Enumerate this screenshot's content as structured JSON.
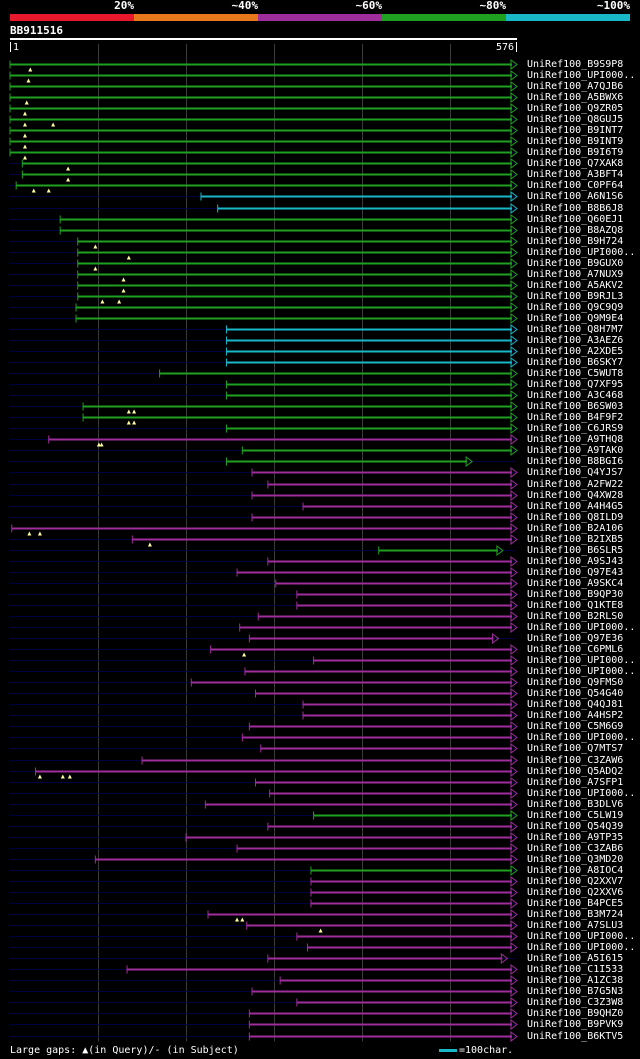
{
  "legend": {
    "segments": [
      {
        "label": "20%",
        "color": "#e8192c"
      },
      {
        "label": "~40%",
        "color": "#e8781c"
      },
      {
        "label": "~60%",
        "color": "#a02d9c"
      },
      {
        "label": "~80%",
        "color": "#20a020"
      },
      {
        "label": "~100%",
        "color": "#18b8c8"
      }
    ]
  },
  "query": {
    "name": "BB911516",
    "start": "1",
    "end": "576",
    "length": 576
  },
  "colors": {
    "purple": "#a02d9c",
    "green": "#20a020",
    "cyan": "#18b8c8",
    "gap": "#000040",
    "grid": "#3a3a3a"
  },
  "hits": [
    {
      "name": "UniRef100_B9S9P8",
      "c": "green",
      "s": 1,
      "e": 576,
      "gaps": [
        24
      ]
    },
    {
      "name": "UniRef100_UPI000..",
      "c": "green",
      "s": 1,
      "e": 576,
      "gaps": [
        22
      ]
    },
    {
      "name": "UniRef100_A7QJB6",
      "c": "green",
      "s": 1,
      "e": 576,
      "gaps": []
    },
    {
      "name": "UniRef100_A5BWX6",
      "c": "green",
      "s": 1,
      "e": 576,
      "gaps": [
        20
      ]
    },
    {
      "name": "UniRef100_Q9ZR05",
      "c": "green",
      "s": 1,
      "e": 576,
      "gaps": [
        18
      ]
    },
    {
      "name": "UniRef100_Q8GUJ5",
      "c": "green",
      "s": 1,
      "e": 576,
      "gaps": [
        18,
        50
      ]
    },
    {
      "name": "UniRef100_B9INT7",
      "c": "green",
      "s": 1,
      "e": 576,
      "gaps": [
        18
      ]
    },
    {
      "name": "UniRef100_B9INT9",
      "c": "green",
      "s": 1,
      "e": 576,
      "gaps": [
        18
      ]
    },
    {
      "name": "UniRef100_B9I6T9",
      "c": "green",
      "s": 1,
      "e": 576,
      "gaps": [
        18
      ]
    },
    {
      "name": "UniRef100_Q7XAK8",
      "c": "green",
      "s": 15,
      "e": 576,
      "gaps": [
        67
      ]
    },
    {
      "name": "UniRef100_A3BFT4",
      "c": "green",
      "s": 15,
      "e": 576,
      "gaps": [
        67
      ]
    },
    {
      "name": "UniRef100_C0PF64",
      "c": "green",
      "s": 8,
      "e": 576,
      "gaps": [
        28,
        45
      ]
    },
    {
      "name": "UniRef100_A6N1S6",
      "c": "cyan",
      "s": 218,
      "e": 576,
      "gaps": []
    },
    {
      "name": "UniRef100_B8B6J8",
      "c": "cyan",
      "s": 237,
      "e": 576,
      "gaps": []
    },
    {
      "name": "UniRef100_Q60EJ1",
      "c": "green",
      "s": 58,
      "e": 576,
      "gaps": []
    },
    {
      "name": "UniRef100_B8AZQ8",
      "c": "green",
      "s": 58,
      "e": 576,
      "gaps": []
    },
    {
      "name": "UniRef100_B9H724",
      "c": "green",
      "s": 78,
      "e": 576,
      "gaps": [
        98
      ]
    },
    {
      "name": "UniRef100_UPI000..",
      "c": "green",
      "s": 78,
      "e": 576,
      "gaps": [
        136
      ]
    },
    {
      "name": "UniRef100_B9GUX0",
      "c": "green",
      "s": 78,
      "e": 576,
      "gaps": [
        98
      ]
    },
    {
      "name": "UniRef100_A7NUX9",
      "c": "green",
      "s": 78,
      "e": 576,
      "gaps": [
        130
      ]
    },
    {
      "name": "UniRef100_A5AKV2",
      "c": "green",
      "s": 78,
      "e": 576,
      "gaps": [
        130
      ]
    },
    {
      "name": "UniRef100_B9RJL3",
      "c": "green",
      "s": 78,
      "e": 576,
      "gaps": [
        106,
        125
      ]
    },
    {
      "name": "UniRef100_Q9C9Q9",
      "c": "green",
      "s": 76,
      "e": 576,
      "gaps": []
    },
    {
      "name": "UniRef100_Q9M9E4",
      "c": "green",
      "s": 76,
      "e": 576,
      "gaps": []
    },
    {
      "name": "UniRef100_Q8H7M7",
      "c": "cyan",
      "s": 247,
      "e": 576,
      "gaps": []
    },
    {
      "name": "UniRef100_A3AEZ6",
      "c": "cyan",
      "s": 247,
      "e": 576,
      "gaps": []
    },
    {
      "name": "UniRef100_A2XDE5",
      "c": "cyan",
      "s": 247,
      "e": 576,
      "gaps": []
    },
    {
      "name": "UniRef100_B6SKY7",
      "c": "cyan",
      "s": 247,
      "e": 576,
      "gaps": []
    },
    {
      "name": "UniRef100_C5WUT8",
      "c": "green",
      "s": 171,
      "e": 576,
      "gaps": []
    },
    {
      "name": "UniRef100_Q7XF95",
      "c": "green",
      "s": 247,
      "e": 576,
      "gaps": []
    },
    {
      "name": "UniRef100_A3C468",
      "c": "green",
      "s": 247,
      "e": 576,
      "gaps": []
    },
    {
      "name": "UniRef100_B6SW03",
      "c": "green",
      "s": 84,
      "e": 576,
      "gaps": [
        136,
        142
      ]
    },
    {
      "name": "UniRef100_B4F9F2",
      "c": "green",
      "s": 84,
      "e": 576,
      "gaps": [
        136,
        142
      ]
    },
    {
      "name": "UniRef100_C6JRS9",
      "c": "green",
      "s": 247,
      "e": 576,
      "gaps": []
    },
    {
      "name": "UniRef100_A9THQ8",
      "c": "purple",
      "s": 45,
      "e": 576,
      "gaps": [
        102,
        105
      ]
    },
    {
      "name": "UniRef100_A9TAK0",
      "c": "green",
      "s": 265,
      "e": 576,
      "gaps": []
    },
    {
      "name": "UniRef100_B8BGI6",
      "c": "green",
      "s": 247,
      "e": 525,
      "gaps": []
    },
    {
      "name": "UniRef100_Q4YJS7",
      "c": "purple",
      "s": 276,
      "e": 576,
      "gaps": []
    },
    {
      "name": "UniRef100_A2FW22",
      "c": "purple",
      "s": 294,
      "e": 576,
      "gaps": []
    },
    {
      "name": "UniRef100_Q4XW28",
      "c": "purple",
      "s": 276,
      "e": 576,
      "gaps": []
    },
    {
      "name": "UniRef100_A4H4G5",
      "c": "purple",
      "s": 334,
      "e": 576,
      "gaps": []
    },
    {
      "name": "UniRef100_Q8ILD9",
      "c": "purple",
      "s": 276,
      "e": 576,
      "gaps": []
    },
    {
      "name": "UniRef100_B2A106",
      "c": "purple",
      "s": 3,
      "e": 576,
      "gaps": [
        23,
        35
      ]
    },
    {
      "name": "UniRef100_B2IXB5",
      "c": "purple",
      "s": 140,
      "e": 576,
      "gaps": [
        160
      ]
    },
    {
      "name": "UniRef100_B6SLR5",
      "c": "green",
      "s": 420,
      "e": 560,
      "gaps": []
    },
    {
      "name": "UniRef100_A9SJ43",
      "c": "purple",
      "s": 294,
      "e": 576,
      "gaps": []
    },
    {
      "name": "UniRef100_Q97E43",
      "c": "purple",
      "s": 259,
      "e": 576,
      "gaps": []
    },
    {
      "name": "UniRef100_A9SKC4",
      "c": "purple",
      "s": 303,
      "e": 576,
      "gaps": []
    },
    {
      "name": "UniRef100_B9QP30",
      "c": "purple",
      "s": 327,
      "e": 576,
      "gaps": []
    },
    {
      "name": "UniRef100_Q1KTE8",
      "c": "purple",
      "s": 327,
      "e": 576,
      "gaps": []
    },
    {
      "name": "UniRef100_B2RLS0",
      "c": "purple",
      "s": 283,
      "e": 576,
      "gaps": []
    },
    {
      "name": "UniRef100_UPI000..",
      "c": "purple",
      "s": 262,
      "e": 576,
      "gaps": []
    },
    {
      "name": "UniRef100_Q97E36",
      "c": "purple",
      "s": 273,
      "e": 555,
      "gaps": []
    },
    {
      "name": "UniRef100_C6PML6",
      "c": "purple",
      "s": 229,
      "e": 576,
      "gaps": [
        267
      ]
    },
    {
      "name": "UniRef100_UPI000..",
      "c": "purple",
      "s": 346,
      "e": 576,
      "gaps": []
    },
    {
      "name": "UniRef100_UPI000..",
      "c": "purple",
      "s": 268,
      "e": 576,
      "gaps": []
    },
    {
      "name": "UniRef100_Q9FMS0",
      "c": "purple",
      "s": 207,
      "e": 576,
      "gaps": []
    },
    {
      "name": "UniRef100_Q54G40",
      "c": "purple",
      "s": 280,
      "e": 576,
      "gaps": []
    },
    {
      "name": "UniRef100_Q4QJ81",
      "c": "purple",
      "s": 334,
      "e": 576,
      "gaps": []
    },
    {
      "name": "UniRef100_A4HSP2",
      "c": "purple",
      "s": 334,
      "e": 576,
      "gaps": []
    },
    {
      "name": "UniRef100_C5M6G9",
      "c": "purple",
      "s": 273,
      "e": 576,
      "gaps": []
    },
    {
      "name": "UniRef100_UPI000..",
      "c": "purple",
      "s": 265,
      "e": 576,
      "gaps": []
    },
    {
      "name": "UniRef100_Q7MTS7",
      "c": "purple",
      "s": 286,
      "e": 576,
      "gaps": []
    },
    {
      "name": "UniRef100_C3ZAW6",
      "c": "purple",
      "s": 151,
      "e": 576,
      "gaps": []
    },
    {
      "name": "UniRef100_Q5ADQ2",
      "c": "purple",
      "s": 30,
      "e": 576,
      "gaps": [
        35,
        61,
        69
      ]
    },
    {
      "name": "UniRef100_A7SFP1",
      "c": "purple",
      "s": 280,
      "e": 576,
      "gaps": []
    },
    {
      "name": "UniRef100_UPI000..",
      "c": "purple",
      "s": 296,
      "e": 576,
      "gaps": []
    },
    {
      "name": "UniRef100_B3DLV6",
      "c": "purple",
      "s": 223,
      "e": 576,
      "gaps": []
    },
    {
      "name": "UniRef100_C5LW19",
      "c": "green",
      "s": 346,
      "e": 576,
      "gaps": []
    },
    {
      "name": "UniRef100_Q54Q39",
      "c": "purple",
      "s": 294,
      "e": 576,
      "gaps": []
    },
    {
      "name": "UniRef100_A9TP35",
      "c": "purple",
      "s": 201,
      "e": 576,
      "gaps": []
    },
    {
      "name": "UniRef100_C3ZAB6",
      "c": "purple",
      "s": 259,
      "e": 576,
      "gaps": []
    },
    {
      "name": "UniRef100_Q3MD20",
      "c": "purple",
      "s": 98,
      "e": 576,
      "gaps": []
    },
    {
      "name": "UniRef100_A8IOC4",
      "c": "green",
      "s": 343,
      "e": 576,
      "gaps": []
    },
    {
      "name": "UniRef100_Q2XXV7",
      "c": "purple",
      "s": 343,
      "e": 576,
      "gaps": []
    },
    {
      "name": "UniRef100_Q2XXV6",
      "c": "purple",
      "s": 343,
      "e": 576,
      "gaps": []
    },
    {
      "name": "UniRef100_B4PCE5",
      "c": "purple",
      "s": 343,
      "e": 576,
      "gaps": []
    },
    {
      "name": "UniRef100_B3M724",
      "c": "purple",
      "s": 226,
      "e": 576,
      "gaps": [
        259,
        265
      ]
    },
    {
      "name": "UniRef100_A7SLU3",
      "c": "purple",
      "s": 270,
      "e": 576,
      "gaps": [
        354
      ]
    },
    {
      "name": "UniRef100_UPI000..",
      "c": "purple",
      "s": 327,
      "e": 576,
      "gaps": []
    },
    {
      "name": "UniRef100_UPI000..",
      "c": "purple",
      "s": 339,
      "e": 576,
      "gaps": []
    },
    {
      "name": "UniRef100_A5I615",
      "c": "purple",
      "s": 294,
      "e": 565,
      "gaps": []
    },
    {
      "name": "UniRef100_C1I533",
      "c": "purple",
      "s": 134,
      "e": 576,
      "gaps": []
    },
    {
      "name": "UniRef100_A1ZC38",
      "c": "purple",
      "s": 308,
      "e": 576,
      "gaps": []
    },
    {
      "name": "UniRef100_B7G5N3",
      "c": "purple",
      "s": 276,
      "e": 576,
      "gaps": []
    },
    {
      "name": "UniRef100_C3Z3W8",
      "c": "purple",
      "s": 327,
      "e": 576,
      "gaps": []
    },
    {
      "name": "UniRef100_B9QHZ0",
      "c": "purple",
      "s": 273,
      "e": 576,
      "gaps": []
    },
    {
      "name": "UniRef100_B9PVK9",
      "c": "purple",
      "s": 273,
      "e": 576,
      "gaps": []
    },
    {
      "name": "UniRef100_B6KTV5",
      "c": "purple",
      "s": 273,
      "e": 576,
      "gaps": []
    }
  ],
  "footer": {
    "text": "Large gaps: ▲(in Query)/- (in Subject)"
  },
  "scale": {
    "label": "=100char."
  }
}
